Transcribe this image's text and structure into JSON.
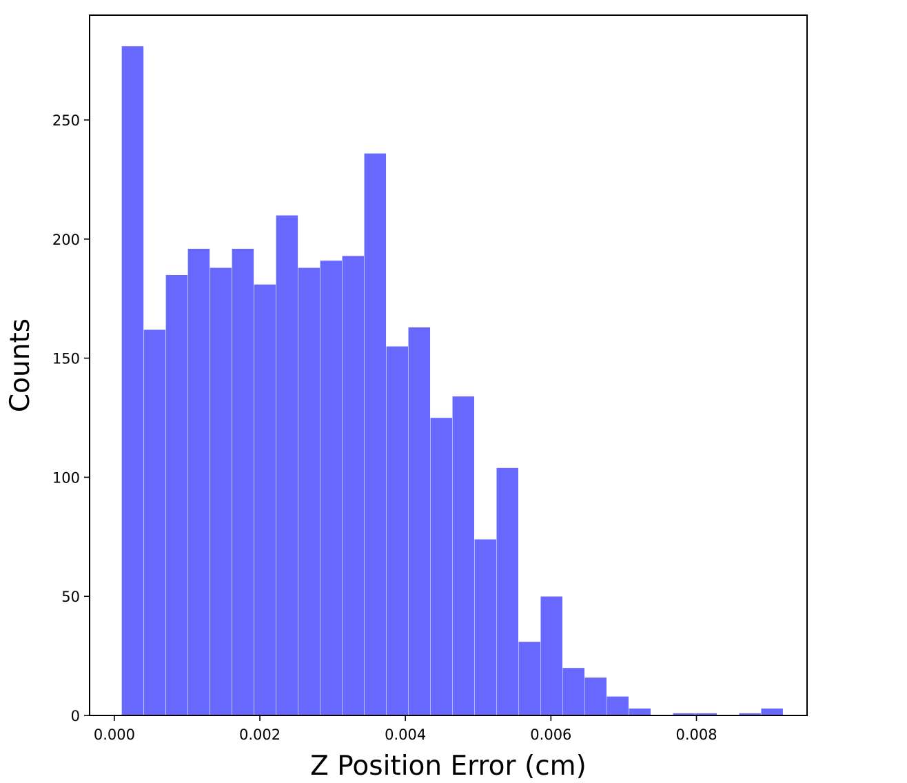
{
  "chart_data": {
    "type": "histogram",
    "title": "",
    "xlabel": "Z Position Error (cm)",
    "ylabel": "Counts",
    "xlim": [
      -0.00034,
      0.00952
    ],
    "ylim": [
      0,
      294
    ],
    "bar_color": "#6868ff",
    "bar_edge_color": "#ffffff",
    "grid": false,
    "legend": "none",
    "xticks": [
      0.0,
      0.002,
      0.004,
      0.006,
      0.008
    ],
    "xtick_labels": [
      "0.000",
      "0.002",
      "0.004",
      "0.006",
      "0.008"
    ],
    "yticks": [
      0,
      50,
      100,
      150,
      200,
      250
    ],
    "ytick_labels": [
      "0",
      "50",
      "100",
      "150",
      "200",
      "250"
    ],
    "bin_start": 0.0001,
    "bin_width": 0.000303,
    "counts": [
      281,
      162,
      185,
      196,
      188,
      196,
      181,
      210,
      188,
      191,
      193,
      236,
      155,
      163,
      125,
      134,
      74,
      104,
      31,
      50,
      20,
      16,
      8,
      3,
      0,
      1,
      1,
      0,
      1,
      3
    ]
  }
}
